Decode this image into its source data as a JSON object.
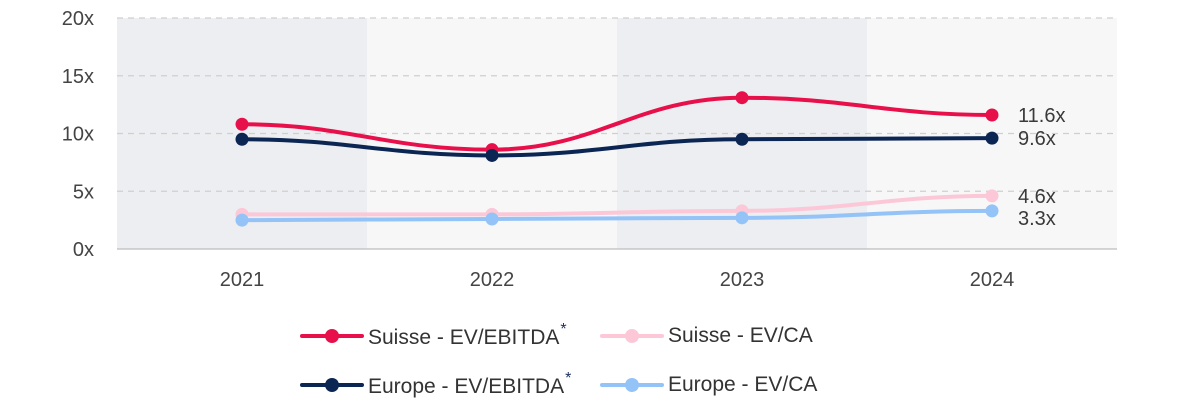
{
  "chart_data": {
    "type": "line",
    "categories": [
      "2021",
      "2022",
      "2023",
      "2024"
    ],
    "ylim": [
      0,
      20
    ],
    "yticks": [
      0,
      5,
      10,
      15,
      20
    ],
    "ytick_suffix": "x",
    "grid": true,
    "legend_placement": "bottom",
    "series": [
      {
        "name": "Suisse - EV/EBITDA",
        "marker": "*",
        "values": [
          10.8,
          8.6,
          13.1,
          11.6
        ],
        "end_label": "11.6x",
        "color": "#e8104a"
      },
      {
        "name": "Suisse - EV/CA",
        "values": [
          3.0,
          3.0,
          3.3,
          4.6
        ],
        "end_label": "4.6x",
        "color": "#fcc8d8"
      },
      {
        "name": "Europe - EV/EBITDA",
        "marker": "*",
        "values": [
          9.5,
          8.1,
          9.5,
          9.6
        ],
        "end_label": "9.6x",
        "color": "#0c2654"
      },
      {
        "name": "Europe - EV/CA",
        "values": [
          2.5,
          2.6,
          2.7,
          3.3
        ],
        "end_label": "3.3x",
        "color": "#94c3f7"
      }
    ]
  }
}
